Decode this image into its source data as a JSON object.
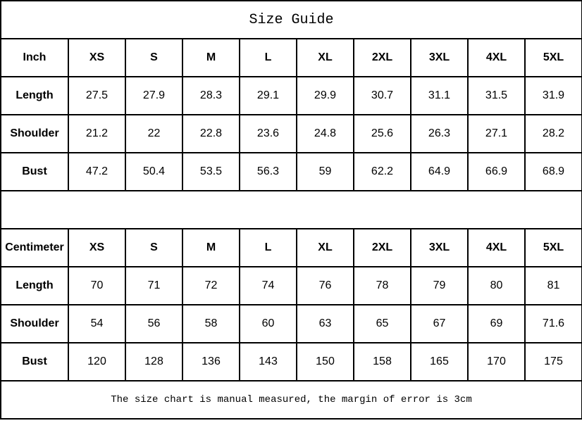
{
  "title": "Size Guide",
  "tables": [
    {
      "unit": "Inch",
      "sizes": [
        "XS",
        "S",
        "M",
        "L",
        "XL",
        "2XL",
        "3XL",
        "4XL",
        "5XL"
      ],
      "rows": [
        {
          "label": "Length",
          "values": [
            "27.5",
            "27.9",
            "28.3",
            "29.1",
            "29.9",
            "30.7",
            "31.1",
            "31.5",
            "31.9"
          ]
        },
        {
          "label": "Shoulder",
          "values": [
            "21.2",
            "22",
            "22.8",
            "23.6",
            "24.8",
            "25.6",
            "26.3",
            "27.1",
            "28.2"
          ]
        },
        {
          "label": "Bust",
          "values": [
            "47.2",
            "50.4",
            "53.5",
            "56.3",
            "59",
            "62.2",
            "64.9",
            "66.9",
            "68.9"
          ]
        }
      ]
    },
    {
      "unit": "Centimeter",
      "sizes": [
        "XS",
        "S",
        "M",
        "L",
        "XL",
        "2XL",
        "3XL",
        "4XL",
        "5XL"
      ],
      "rows": [
        {
          "label": "Length",
          "values": [
            "70",
            "71",
            "72",
            "74",
            "76",
            "78",
            "79",
            "80",
            "81"
          ]
        },
        {
          "label": "Shoulder",
          "values": [
            "54",
            "56",
            "58",
            "60",
            "63",
            "65",
            "67",
            "69",
            "71.6"
          ]
        },
        {
          "label": "Bust",
          "values": [
            "120",
            "128",
            "136",
            "143",
            "150",
            "158",
            "165",
            "170",
            "175"
          ]
        }
      ]
    }
  ],
  "footnote": "The size chart is manual measured, the margin of error is 3cm"
}
